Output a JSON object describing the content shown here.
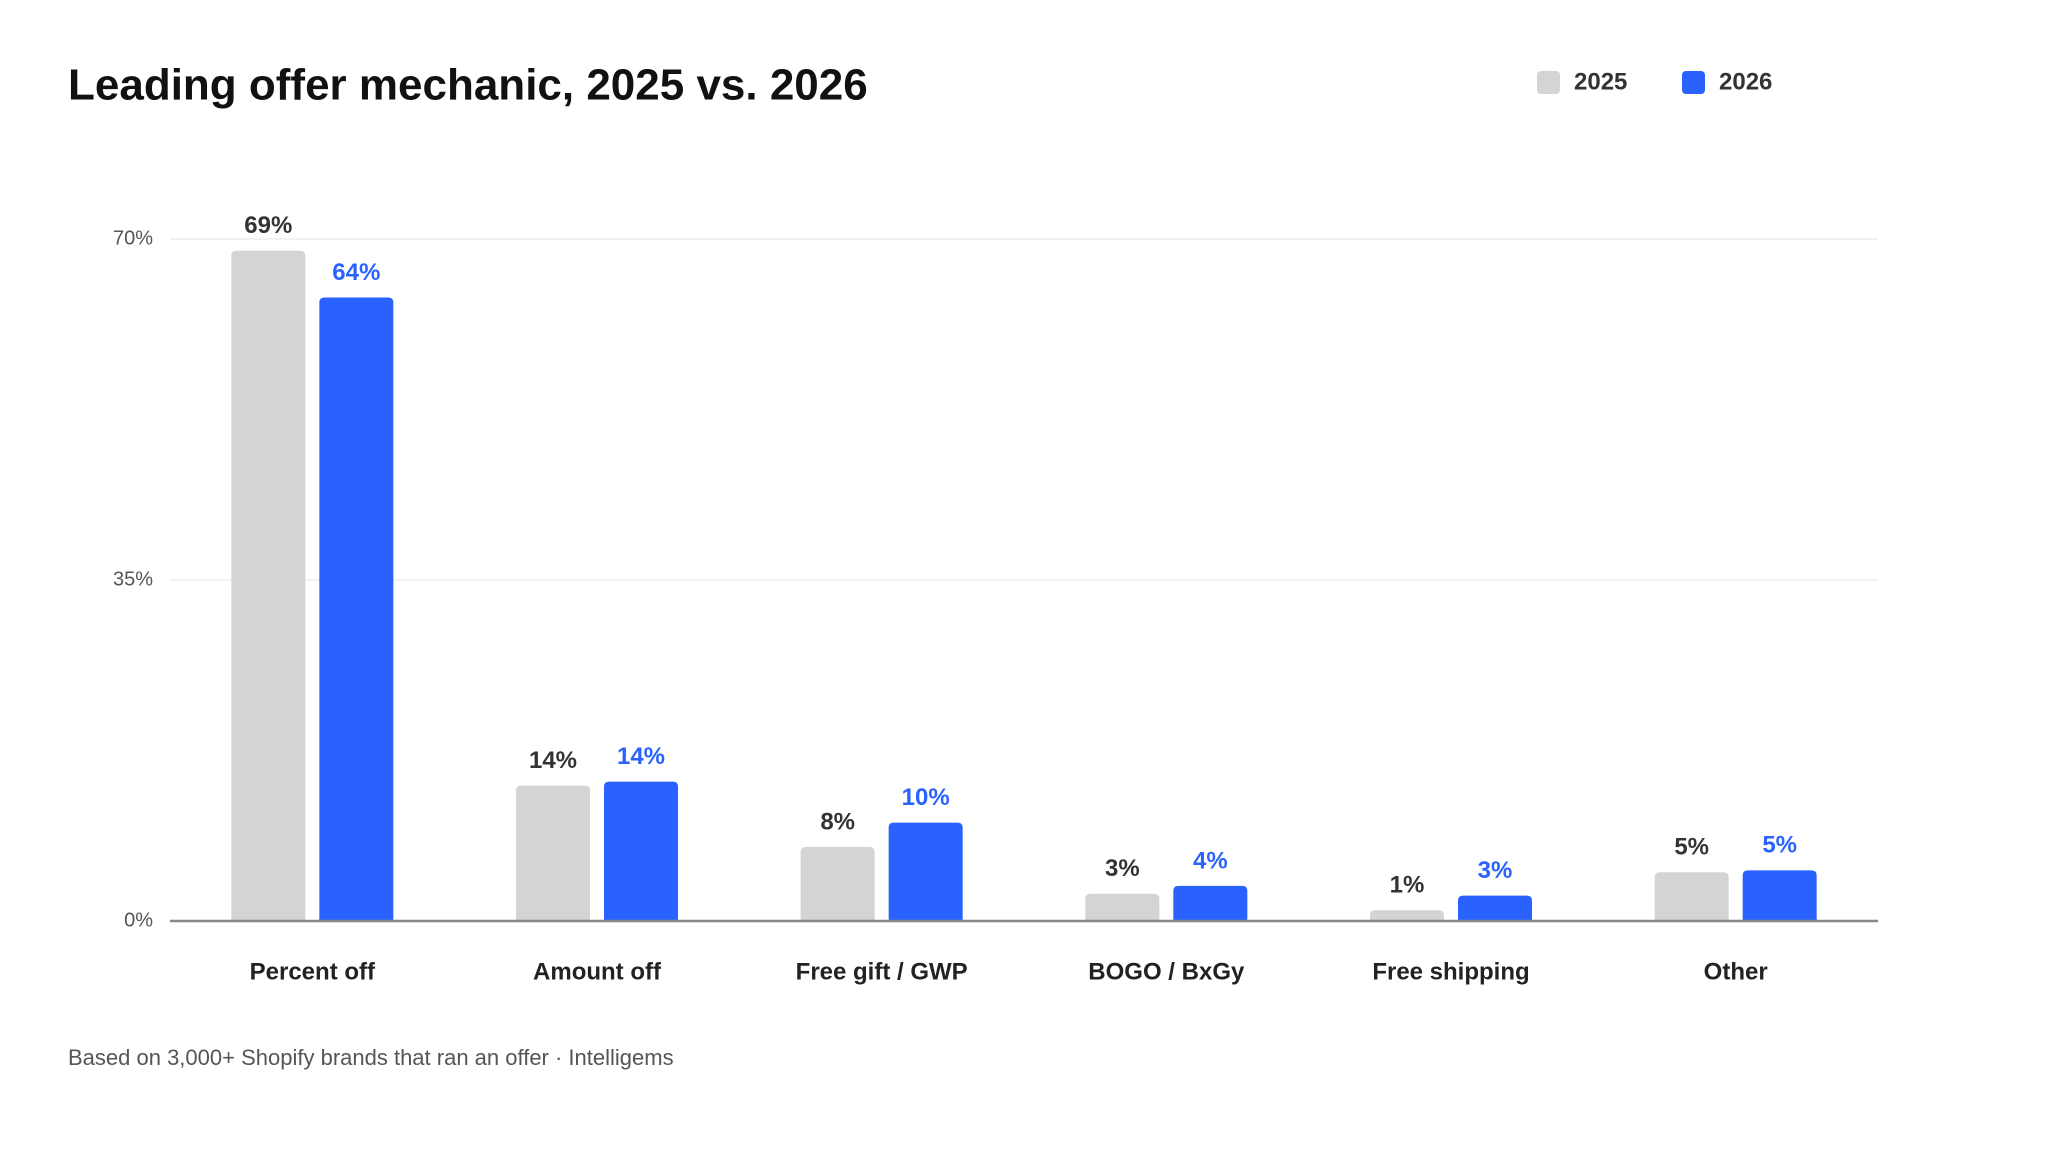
{
  "chart_data": {
    "type": "bar",
    "title": "Leading offer mechanic, 2025 vs. 2026",
    "footnote": "Based on 3,000+ Shopify brands that ran an offer · Intelligems",
    "categories": [
      "Percent off",
      "Amount off",
      "Free gift / GWP",
      "BOGO / BxGy",
      "Free shipping",
      "Other"
    ],
    "series": [
      {
        "name": "2025",
        "color": "#d4d4d4",
        "values": [
          68.8,
          13.9,
          7.6,
          2.8,
          1.1,
          5.0
        ],
        "value_labels": [
          "69%",
          "14%",
          "8%",
          "3%",
          "1%",
          "5%"
        ]
      },
      {
        "name": "2026",
        "color": "#2962ff",
        "values": [
          64.0,
          14.3,
          10.1,
          3.6,
          2.6,
          5.2
        ],
        "value_labels": [
          "64%",
          "14%",
          "10%",
          "4%",
          "3%",
          "5%"
        ]
      }
    ],
    "ylim": [
      0,
      70
    ],
    "yticks": [
      {
        "value": 0,
        "label": "0%"
      },
      {
        "value": 35,
        "label": "35%"
      },
      {
        "value": 70,
        "label": "70%"
      }
    ],
    "grid": true
  }
}
